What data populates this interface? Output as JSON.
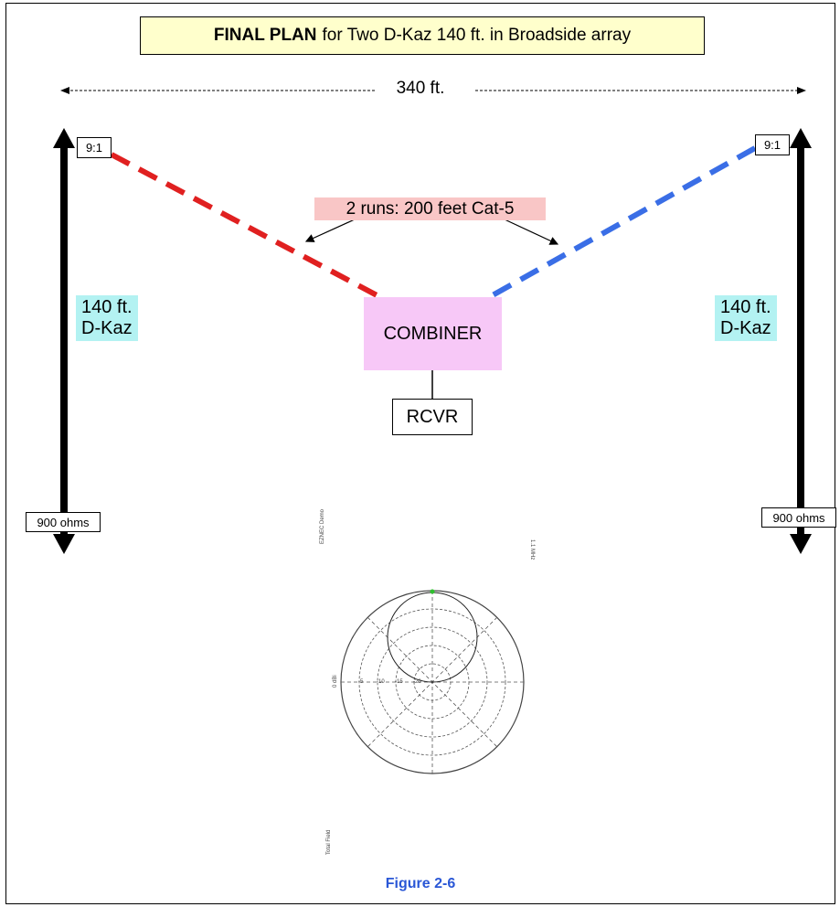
{
  "title": {
    "bold": "FINAL PLAN",
    "rest": "for Two D-Kaz 140 ft. in Broadside array"
  },
  "width_label": "340 ft.",
  "left_antenna": {
    "transformer": "9:1",
    "length": "140 ft.",
    "type": "D-Kaz",
    "termination": "900 ohms",
    "feedline_color": "#e02020"
  },
  "right_antenna": {
    "transformer": "9:1",
    "length": "140 ft.",
    "type": "D-Kaz",
    "termination": "900 ohms",
    "feedline_color": "#3a6ee6"
  },
  "cable_label": "2 runs: 200 feet Cat-5",
  "combiner_label": "COMBINER",
  "receiver_label": "RCVR",
  "polar_plot": {
    "program": "EZNEC Demo",
    "freq": "1.1 MHz",
    "field": "Total Field",
    "zero_label": "0 dBi",
    "ring_labels": [
      "-5",
      "-10",
      "-15",
      "-20"
    ]
  },
  "figure_caption": "Figure 2-6"
}
